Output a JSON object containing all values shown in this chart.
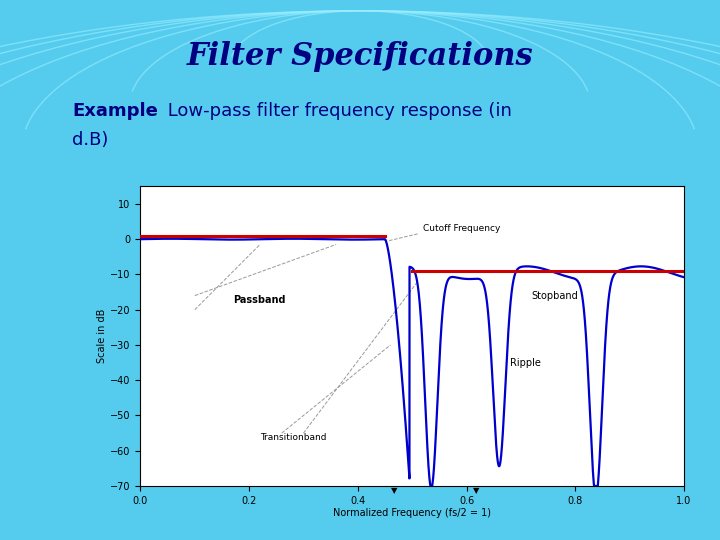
{
  "title": "Filter Specifications",
  "subtitle_bold": "Example",
  "subtitle_rest": " Low-pass filter frequency response (in",
  "subtitle_line2": "d.B)",
  "bg_color": "#55CCEE",
  "title_color": "#000080",
  "subtitle_color": "#000080",
  "arc_color": "#88DDEE",
  "plot_bg": "#FFFFFF",
  "xlabel": "Normalized Frequency (fs/2 = 1)",
  "ylabel": "Scale in dB",
  "xlim": [
    0,
    1
  ],
  "ylim": [
    -70,
    15
  ],
  "yticks": [
    10,
    0,
    -10,
    -20,
    -30,
    -40,
    -50,
    -60,
    -70
  ],
  "xticks": [
    0,
    0.2,
    0.4,
    0.6,
    0.8,
    1
  ],
  "line_blue": "#0000CC",
  "line_red": "#CC0000",
  "stopband_level": -9.0,
  "annotation_cutoff": "Cutoff Frequency",
  "annotation_passband": "Passband",
  "annotation_stopband": "Stopband",
  "annotation_ripple": "Ripple",
  "annotation_transition": "Transitionband"
}
